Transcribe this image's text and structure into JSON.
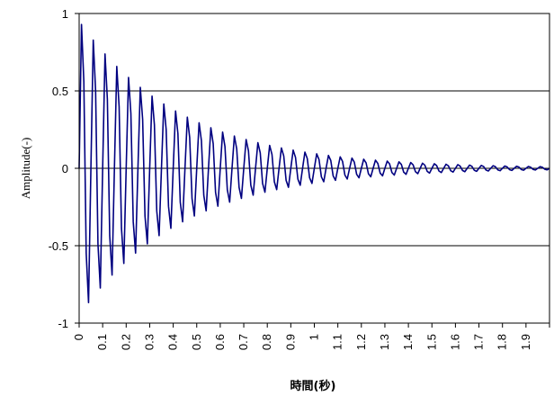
{
  "chart_data": {
    "type": "line",
    "title": "",
    "xlabel": "時間(秒)",
    "ylabel": "Amplitude(-)",
    "xlim": [
      0,
      2.0
    ],
    "ylim": [
      -1,
      1
    ],
    "x_ticks": [
      "0",
      "0.1",
      "0.2",
      "0.3",
      "0.4",
      "0.5",
      "0.6",
      "0.7",
      "0.8",
      "0.9",
      "1",
      "1.1",
      "1.2",
      "1.3",
      "1.4",
      "1.5",
      "1.6",
      "1.7",
      "1.8",
      "1.9"
    ],
    "y_ticks": [
      "1",
      "0.5",
      "0",
      "-0.5",
      "-1"
    ],
    "grid": "horizontal",
    "legend": "none",
    "signal": {
      "description_free": true,
      "sample_interval": 0.01,
      "duration": 2.0,
      "frequency_hz": 20,
      "amplitude": 1.0,
      "decay_rate": 2.3,
      "peak_points": [
        {
          "x": 0.02,
          "y": 0.87
        },
        {
          "x": 0.05,
          "y": -0.85
        },
        {
          "x": 0.07,
          "y": 0.81
        },
        {
          "x": 0.1,
          "y": -0.75
        },
        {
          "x": 0.12,
          "y": 0.68
        },
        {
          "x": 0.15,
          "y": -0.59
        },
        {
          "x": 0.19,
          "y": 0.53
        },
        {
          "x": 0.21,
          "y": -0.52
        },
        {
          "x": 0.23,
          "y": 0.5
        },
        {
          "x": 0.27,
          "y": -0.46
        }
      ]
    },
    "series": [
      {
        "color": "#000080"
      }
    ]
  }
}
